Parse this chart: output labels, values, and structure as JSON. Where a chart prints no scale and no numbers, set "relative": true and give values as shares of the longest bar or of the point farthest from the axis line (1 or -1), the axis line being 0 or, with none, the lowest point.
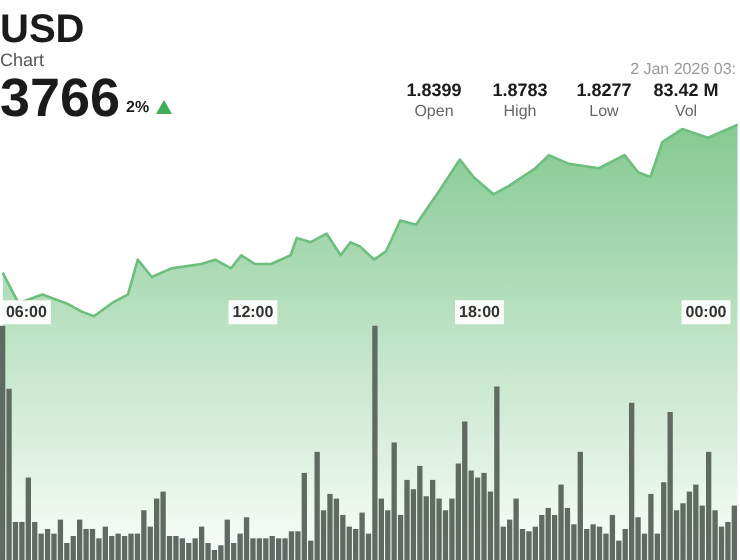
{
  "chart_data": {
    "type": "area",
    "title": "USD",
    "subtitle": "Chart",
    "relative": true,
    "annotations": [
      "3766",
      "2%",
      "2 Jan 2026 03:",
      "1.8399",
      "Open",
      "1.8783",
      "High",
      "1.8277",
      "Low",
      "83.42 M",
      "Vol"
    ],
    "xlim": [
      5.3,
      24.9
    ],
    "xticks": [
      {
        "value": 6,
        "label": "06:00"
      },
      {
        "value": 12,
        "label": "12:00"
      },
      {
        "value": 18,
        "label": "18:00"
      },
      {
        "value": 24,
        "label": "00:00"
      }
    ],
    "series": [
      {
        "color": "#6cbf7c",
        "x": [
          5.37,
          5.79,
          6.42,
          7.05,
          7.48,
          7.79,
          8.26,
          8.69,
          8.95,
          9.32,
          9.84,
          10.63,
          11.0,
          11.42,
          11.69,
          12.05,
          12.48,
          13.0,
          13.16,
          13.53,
          13.95,
          14.32,
          14.58,
          14.84,
          15.21,
          15.53,
          15.9,
          16.32,
          16.95,
          17.48,
          17.84,
          18.37,
          18.79,
          19.48,
          19.84,
          20.37,
          21.16,
          21.84,
          22.21,
          22.53,
          22.84,
          23.37,
          24.05,
          24.84
        ],
        "values": [
          0.66,
          0.59,
          0.61,
          0.59,
          0.57,
          0.56,
          0.59,
          0.61,
          0.69,
          0.65,
          0.67,
          0.68,
          0.69,
          0.67,
          0.7,
          0.68,
          0.68,
          0.7,
          0.74,
          0.73,
          0.75,
          0.7,
          0.73,
          0.72,
          0.69,
          0.71,
          0.78,
          0.77,
          0.85,
          0.92,
          0.88,
          0.84,
          0.86,
          0.9,
          0.93,
          0.91,
          0.9,
          0.93,
          0.89,
          0.88,
          0.96,
          0.99,
          0.97,
          1.0
        ]
      },
      {
        "type": "bar",
        "color": "#5f6b62",
        "axis": "y2",
        "x": [
          5.37,
          5.54,
          5.71,
          5.88,
          6.05,
          6.22,
          6.39,
          6.56,
          6.73,
          6.9,
          7.07,
          7.24,
          7.41,
          7.58,
          7.75,
          7.92,
          8.09,
          8.26,
          8.43,
          8.6,
          8.77,
          8.94,
          9.11,
          9.28,
          9.45,
          9.62,
          9.79,
          9.96,
          10.13,
          10.3,
          10.47,
          10.64,
          10.81,
          10.98,
          11.15,
          11.32,
          11.49,
          11.66,
          11.83,
          12.0,
          12.17,
          12.34,
          12.51,
          12.68,
          12.85,
          13.02,
          13.19,
          13.36,
          13.53,
          13.7,
          13.87,
          14.04,
          14.21,
          14.38,
          14.55,
          14.72,
          14.89,
          15.06,
          15.23,
          15.4,
          15.57,
          15.74,
          15.91,
          16.08,
          16.25,
          16.42,
          16.59,
          16.76,
          16.93,
          17.1,
          17.27,
          17.44,
          17.61,
          17.78,
          17.95,
          18.12,
          18.29,
          18.46,
          18.63,
          18.8,
          18.97,
          19.14,
          19.31,
          19.48,
          19.65,
          19.82,
          19.99,
          20.16,
          20.33,
          20.5,
          20.67,
          20.84,
          21.01,
          21.18,
          21.35,
          21.52,
          21.69,
          21.86,
          22.03,
          22.2,
          22.37,
          22.54,
          22.71,
          22.88,
          23.05,
          23.22,
          23.39,
          23.56,
          23.73,
          23.9,
          24.07,
          24.24,
          24.41,
          24.58,
          24.75
        ],
        "values": [
          1.0,
          0.73,
          0.16,
          0.16,
          0.35,
          0.16,
          0.11,
          0.13,
          0.11,
          0.17,
          0.07,
          0.1,
          0.17,
          0.13,
          0.13,
          0.09,
          0.14,
          0.1,
          0.11,
          0.1,
          0.11,
          0.11,
          0.21,
          0.14,
          0.26,
          0.29,
          0.1,
          0.1,
          0.09,
          0.07,
          0.09,
          0.14,
          0.07,
          0.04,
          0.06,
          0.17,
          0.07,
          0.11,
          0.18,
          0.09,
          0.09,
          0.09,
          0.1,
          0.09,
          0.09,
          0.12,
          0.12,
          0.37,
          0.08,
          0.46,
          0.21,
          0.28,
          0.26,
          0.19,
          0.14,
          0.13,
          0.2,
          0.11,
          1.0,
          0.26,
          0.21,
          0.5,
          0.19,
          0.34,
          0.3,
          0.4,
          0.27,
          0.34,
          0.26,
          0.21,
          0.26,
          0.41,
          0.59,
          0.38,
          0.35,
          0.37,
          0.29,
          0.74,
          0.14,
          0.17,
          0.26,
          0.13,
          0.12,
          0.14,
          0.19,
          0.22,
          0.19,
          0.32,
          0.22,
          0.15,
          0.46,
          0.13,
          0.15,
          0.14,
          0.11,
          0.19,
          0.08,
          0.13,
          0.67,
          0.18,
          0.11,
          0.28,
          0.11,
          0.33,
          0.63,
          0.21,
          0.24,
          0.29,
          0.32,
          0.23,
          0.46,
          0.21,
          0.14,
          0.16,
          0.23
        ]
      }
    ]
  }
}
